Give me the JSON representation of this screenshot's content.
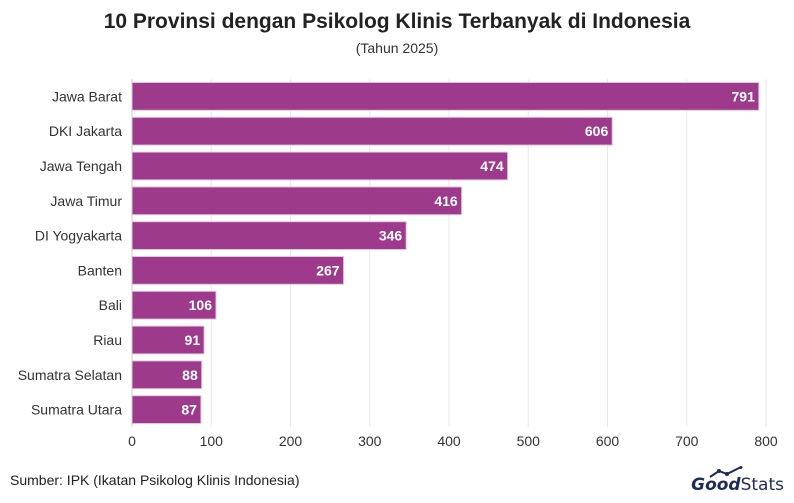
{
  "chart_data": {
    "type": "bar",
    "orientation": "horizontal",
    "title": "10 Provinsi dengan Psikolog Klinis Terbanyak di Indonesia",
    "subtitle": "(Tahun 2025)",
    "categories": [
      "Jawa Barat",
      "DKI Jakarta",
      "Jawa Tengah",
      "Jawa Timur",
      "DI Yogyakarta",
      "Banten",
      "Bali",
      "Riau",
      "Sumatra Selatan",
      "Sumatra Utara"
    ],
    "values": [
      791,
      606,
      474,
      416,
      346,
      267,
      106,
      91,
      88,
      87
    ],
    "xlim": [
      0,
      800
    ],
    "xticks": [
      0,
      100,
      200,
      300,
      400,
      500,
      600,
      700,
      800
    ],
    "xlabel": "",
    "ylabel": "",
    "grid": "vertical",
    "data_labels": true,
    "bar_color": "#9e3a8c",
    "bar_edge_color": "#e6c9df"
  },
  "footer": {
    "source": "Sumber: IPK (Ikatan Psikolog Klinis Indonesia)",
    "logo_left": "Good",
    "logo_right": "Stats",
    "logo_color": "#1e2a5a",
    "logo_icon": "growth-chart-icon"
  }
}
